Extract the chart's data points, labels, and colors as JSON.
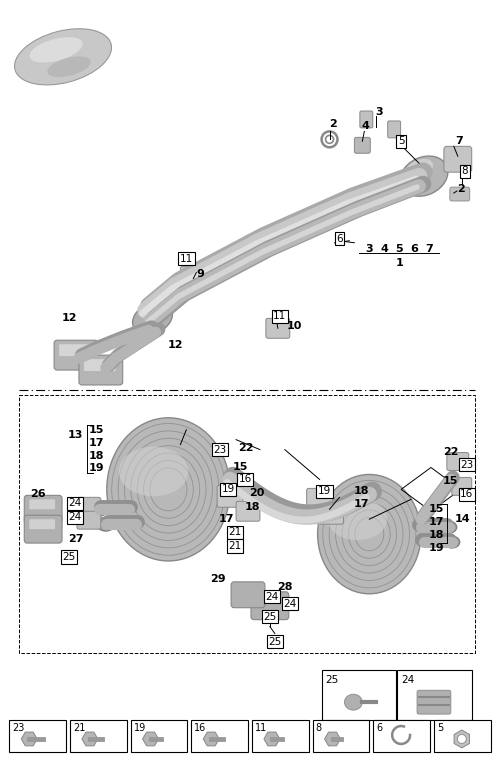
{
  "fig_width": 4.94,
  "fig_height": 7.58,
  "dpi": 100,
  "bg_color": "#ffffff",
  "text_color": "#000000"
}
